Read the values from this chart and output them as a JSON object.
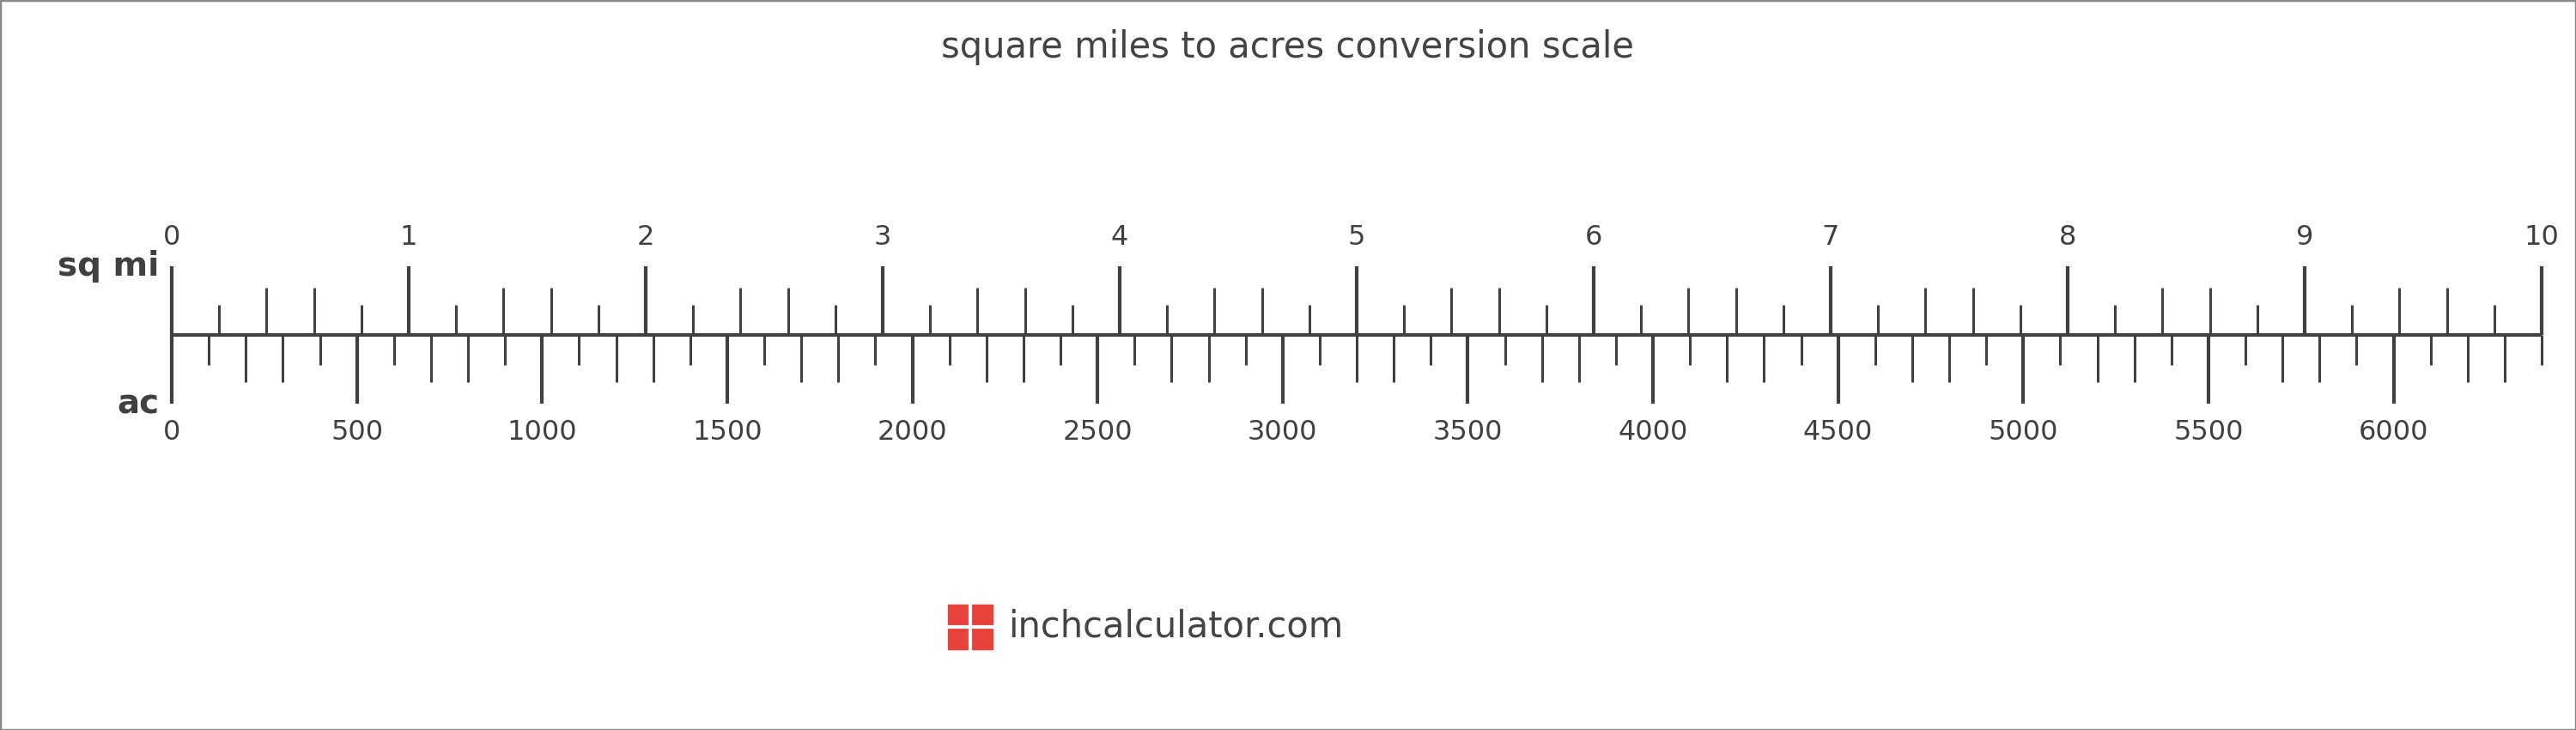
{
  "title": "square miles to acres conversion scale",
  "title_fontsize": 30,
  "title_color": "#444444",
  "background_color": "#ffffff",
  "border_color": "#888888",
  "scale_color": "#404040",
  "sqmi_label": "sq mi",
  "ac_label": "ac",
  "label_fontsize": 28,
  "sqmi_major_ticks": [
    0,
    1,
    2,
    3,
    4,
    5,
    6,
    7,
    8,
    9,
    10
  ],
  "sqmi_max": 10,
  "ac_major_ticks": [
    0,
    500,
    1000,
    1500,
    2000,
    2500,
    3000,
    3500,
    4000,
    4500,
    5000,
    5500,
    6000
  ],
  "ac_max": 6400,
  "tick_label_fontsize": 23,
  "logo_text": "inchcalculator.com",
  "logo_color": "#444444",
  "logo_fontsize": 30,
  "logo_icon_color": "#e8433a"
}
